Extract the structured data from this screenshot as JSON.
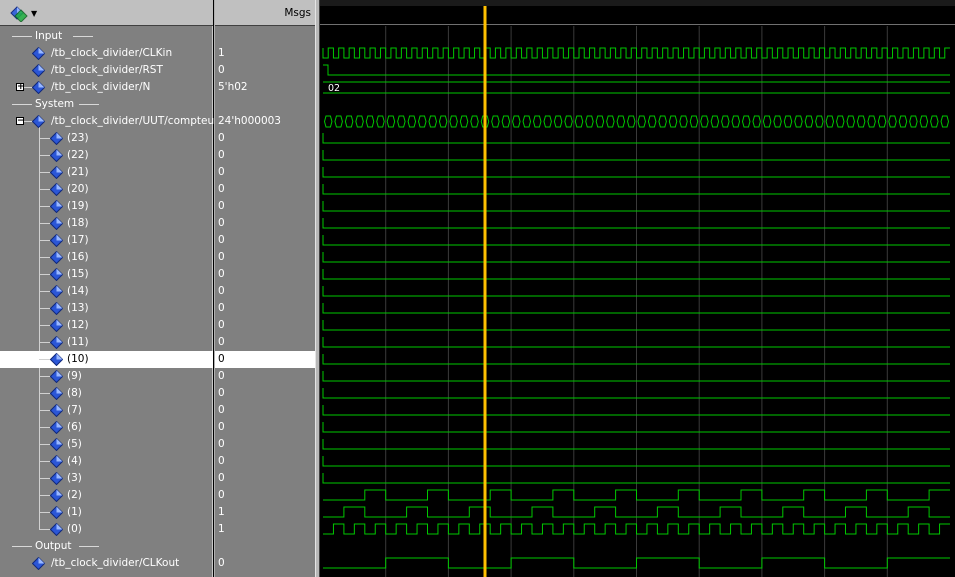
{
  "header": {
    "msgs_label": "Msgs"
  },
  "dividers": [
    {
      "label": "Input",
      "row": 0
    },
    {
      "label": "System",
      "row": 4
    },
    {
      "label": "Output",
      "row": 30
    }
  ],
  "signals": [
    {
      "row": 1,
      "name": "/tb_clock_divider/CLKin",
      "value": "1",
      "indent": 0,
      "expand": null,
      "selected": false
    },
    {
      "row": 2,
      "name": "/tb_clock_divider/RST",
      "value": "0",
      "indent": 0,
      "expand": null,
      "selected": false
    },
    {
      "row": 3,
      "name": "/tb_clock_divider/N",
      "value": "5'h02",
      "indent": 0,
      "expand": "+",
      "selected": false
    },
    {
      "row": 5,
      "name": "/tb_clock_divider/UUT/compteur",
      "value": "24'h000003",
      "indent": 0,
      "expand": "-",
      "selected": false
    },
    {
      "row": 6,
      "name": "(23)",
      "value": "0",
      "indent": 1,
      "expand": null,
      "selected": false
    },
    {
      "row": 7,
      "name": "(22)",
      "value": "0",
      "indent": 1,
      "expand": null,
      "selected": false
    },
    {
      "row": 8,
      "name": "(21)",
      "value": "0",
      "indent": 1,
      "expand": null,
      "selected": false
    },
    {
      "row": 9,
      "name": "(20)",
      "value": "0",
      "indent": 1,
      "expand": null,
      "selected": false
    },
    {
      "row": 10,
      "name": "(19)",
      "value": "0",
      "indent": 1,
      "expand": null,
      "selected": false
    },
    {
      "row": 11,
      "name": "(18)",
      "value": "0",
      "indent": 1,
      "expand": null,
      "selected": false
    },
    {
      "row": 12,
      "name": "(17)",
      "value": "0",
      "indent": 1,
      "expand": null,
      "selected": false
    },
    {
      "row": 13,
      "name": "(16)",
      "value": "0",
      "indent": 1,
      "expand": null,
      "selected": false
    },
    {
      "row": 14,
      "name": "(15)",
      "value": "0",
      "indent": 1,
      "expand": null,
      "selected": false
    },
    {
      "row": 15,
      "name": "(14)",
      "value": "0",
      "indent": 1,
      "expand": null,
      "selected": false
    },
    {
      "row": 16,
      "name": "(13)",
      "value": "0",
      "indent": 1,
      "expand": null,
      "selected": false
    },
    {
      "row": 17,
      "name": "(12)",
      "value": "0",
      "indent": 1,
      "expand": null,
      "selected": false
    },
    {
      "row": 18,
      "name": "(11)",
      "value": "0",
      "indent": 1,
      "expand": null,
      "selected": false
    },
    {
      "row": 19,
      "name": "(10)",
      "value": "0",
      "indent": 1,
      "expand": null,
      "selected": true
    },
    {
      "row": 20,
      "name": "(9)",
      "value": "0",
      "indent": 1,
      "expand": null,
      "selected": false
    },
    {
      "row": 21,
      "name": "(8)",
      "value": "0",
      "indent": 1,
      "expand": null,
      "selected": false
    },
    {
      "row": 22,
      "name": "(7)",
      "value": "0",
      "indent": 1,
      "expand": null,
      "selected": false
    },
    {
      "row": 23,
      "name": "(6)",
      "value": "0",
      "indent": 1,
      "expand": null,
      "selected": false
    },
    {
      "row": 24,
      "name": "(5)",
      "value": "0",
      "indent": 1,
      "expand": null,
      "selected": false
    },
    {
      "row": 25,
      "name": "(4)",
      "value": "0",
      "indent": 1,
      "expand": null,
      "selected": false
    },
    {
      "row": 26,
      "name": "(3)",
      "value": "0",
      "indent": 1,
      "expand": null,
      "selected": false
    },
    {
      "row": 27,
      "name": "(2)",
      "value": "0",
      "indent": 1,
      "expand": null,
      "selected": false
    },
    {
      "row": 28,
      "name": "(1)",
      "value": "1",
      "indent": 1,
      "expand": null,
      "selected": false
    },
    {
      "row": 29,
      "name": "(0)",
      "value": "1",
      "indent": 1,
      "expand": null,
      "selected": false
    },
    {
      "row": 31,
      "name": "/tb_clock_divider/CLKout",
      "value": "0",
      "indent": 0,
      "expand": null,
      "selected": false
    }
  ],
  "waveform": {
    "bus_label_N": "02",
    "wave_color": "#00c800",
    "grid_color": "#3a3a3a",
    "cursor_color": "#ffc000",
    "background_color": "#000000"
  }
}
